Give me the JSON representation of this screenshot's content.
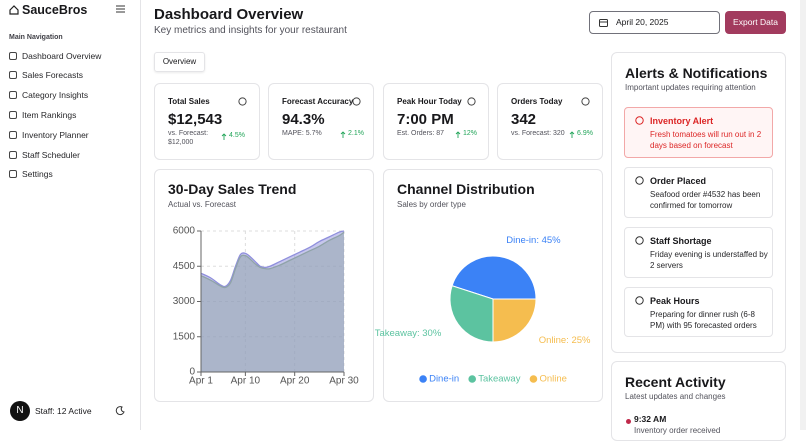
{
  "sidebar": {
    "brand": "SauceBros",
    "section": "Main Navigation",
    "items": [
      "Dashboard Overview",
      "Sales Forecasts",
      "Category Insights",
      "Item Rankings",
      "Inventory Planner",
      "Staff Scheduler",
      "Settings"
    ],
    "avatar": "N",
    "footer": "Staff: 12 Active"
  },
  "header": {
    "title": "Dashboard Overview",
    "subtitle": "Key metrics and insights for your restaurant",
    "date": "April 20, 2025",
    "export": "Export Data"
  },
  "tab": "Overview",
  "kpis": [
    {
      "title": "Total Sales",
      "value": "$12,543",
      "sub": "vs. Forecast: $12,000",
      "change": "4.5%"
    },
    {
      "title": "Forecast Accuracy",
      "value": "94.3%",
      "sub": "MAPE: 5.7%",
      "change": "2.1%"
    },
    {
      "title": "Peak Hour Today",
      "value": "7:00 PM",
      "sub": "Est. Orders: 87",
      "change": "12%"
    },
    {
      "title": "Orders Today",
      "value": "342",
      "sub": "vs. Forecast: 320",
      "change": "6.9%"
    }
  ],
  "alerts": {
    "title": "Alerts & Notifications",
    "subtitle": "Important updates requiring attention",
    "items": [
      {
        "title": "Inventory Alert",
        "text": "Fresh tomatoes will run out in 2 days based on forecast"
      },
      {
        "title": "Order Placed",
        "text": "Seafood order #4532 has been confirmed for tomorrow"
      },
      {
        "title": "Staff Shortage",
        "text": "Friday evening is understaffed by 2 servers"
      },
      {
        "title": "Peak Hours",
        "text": "Preparing for dinner rush (6-8 PM) with 95 forecasted orders"
      }
    ]
  },
  "activity": {
    "title": "Recent Activity",
    "subtitle": "Latest updates and changes",
    "items": [
      {
        "time": "9:32 AM",
        "text": "Inventory order received"
      }
    ]
  },
  "chart_data": [
    {
      "type": "area",
      "title": "30-Day Sales Trend",
      "subtitle": "Actual vs. Forecast",
      "x": [
        1,
        3,
        5,
        6,
        7,
        8,
        9,
        10,
        11,
        12,
        13,
        14,
        15,
        17,
        19,
        21,
        23,
        25,
        27,
        29,
        30
      ],
      "xlim": [
        1,
        30
      ],
      "xticks": [
        {
          "value": 1,
          "label": "Apr 1"
        },
        {
          "value": 10,
          "label": "Apr 10"
        },
        {
          "value": 20,
          "label": "Apr 20"
        },
        {
          "value": 30,
          "label": "Apr 30"
        }
      ],
      "ylim": [
        0,
        6000
      ],
      "yticks": [
        0,
        1500,
        3000,
        4500,
        6000
      ],
      "grid": true,
      "series": [
        {
          "color": "#8f8fdc",
          "values": [
            4200,
            4000,
            3700,
            3650,
            3900,
            4500,
            5000,
            5050,
            4900,
            4700,
            4500,
            4450,
            4500,
            4700,
            4900,
            5100,
            5300,
            5550,
            5750,
            5950,
            6000
          ]
        },
        {
          "color": "#8fa3a8",
          "values": [
            4100,
            3900,
            3650,
            3600,
            3800,
            4400,
            4900,
            4950,
            4800,
            4600,
            4450,
            4400,
            4400,
            4550,
            4750,
            4950,
            5150,
            5350,
            5600,
            5800,
            5950
          ]
        }
      ]
    },
    {
      "type": "pie",
      "title": "Channel Distribution",
      "subtitle": "Sales by order type",
      "categories": [
        "Dine-in",
        "Takeaway",
        "Online"
      ],
      "values": [
        45,
        30,
        25
      ],
      "value_labels": [
        "Dine-in: 45%",
        "Takeaway: 30%",
        "Online: 25%"
      ],
      "colors": [
        "#3b82f6",
        "#5cc3a0",
        "#f5bd4f"
      ],
      "legend": "bottom"
    }
  ]
}
